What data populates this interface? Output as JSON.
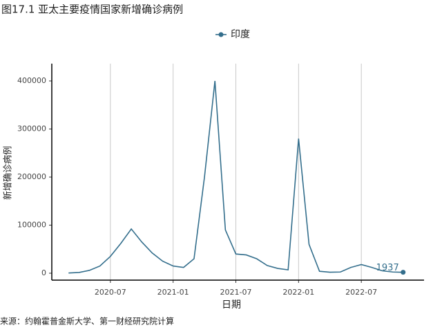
{
  "chart_data": {
    "type": "line",
    "title": "图17.1 亚太主要疫情国家新增确诊病例",
    "x_label": "日期",
    "y_label": "新增确诊病例",
    "source": "来源：约翰霍普金斯大学、第一财经研究院计算",
    "x": [
      "2020-03",
      "2020-04",
      "2020-05",
      "2020-06",
      "2020-07",
      "2020-08",
      "2020-09",
      "2020-10",
      "2020-11",
      "2020-12",
      "2021-01",
      "2021-02",
      "2021-03",
      "2021-04",
      "2021-05",
      "2021-06",
      "2021-07",
      "2021-08",
      "2021-09",
      "2021-10",
      "2021-11",
      "2021-12",
      "2022-01",
      "2022-02",
      "2022-03",
      "2022-04",
      "2022-05",
      "2022-06",
      "2022-07",
      "2022-08",
      "2022-09",
      "2022-10",
      "2022-11"
    ],
    "series": [
      {
        "name": "印度",
        "color": "#336e8c",
        "values": [
          500,
          1500,
          6000,
          15000,
          35000,
          62000,
          92000,
          65000,
          42000,
          25000,
          15000,
          12000,
          30000,
          200000,
          400000,
          90000,
          40000,
          38000,
          30000,
          16000,
          10000,
          7000,
          280000,
          60000,
          4000,
          2000,
          2500,
          12000,
          18000,
          12000,
          5000,
          2500,
          1937
        ]
      }
    ],
    "xlim": [
      "2020-01",
      "2023-01"
    ],
    "xticks": [
      "2020-07",
      "2021-01",
      "2021-07",
      "2022-01",
      "2022-07"
    ],
    "ylim": [
      -14400,
      436000
    ],
    "yticks": [
      0,
      100000,
      200000,
      300000,
      400000
    ],
    "grid": "x",
    "legend": "top"
  }
}
